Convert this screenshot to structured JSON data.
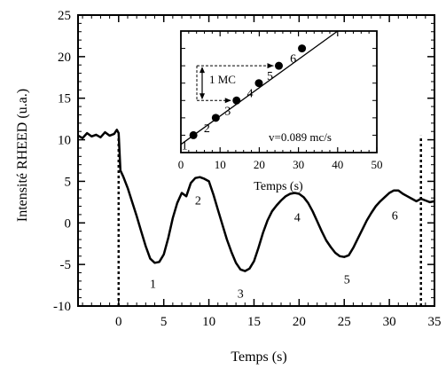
{
  "chart_data": [
    {
      "type": "line",
      "xlabel": "Temps (s)",
      "ylabel": "Intensité RHEED (u.a.)",
      "xlim": [
        -4.5,
        35
      ],
      "ylim": [
        -10,
        25
      ],
      "xticks": [
        0,
        5,
        10,
        15,
        20,
        25,
        30,
        35
      ],
      "yticks": [
        -10,
        -5,
        0,
        5,
        10,
        15,
        20,
        25
      ],
      "grid": false,
      "series": [
        {
          "x": [
            -4.5,
            -4,
            -3.5,
            -3,
            -2.5,
            -2,
            -1.5,
            -1,
            -0.5,
            -0.2,
            0,
            0.2,
            0.5,
            1,
            1.5,
            2,
            2.5,
            3,
            3.5,
            4,
            4.5,
            5,
            5.5,
            6,
            6.5,
            7,
            7.5,
            8,
            8.5,
            9,
            9.5,
            10,
            10.5,
            11,
            11.5,
            12,
            12.5,
            13,
            13.5,
            14,
            14.5,
            15,
            15.5,
            16,
            16.5,
            17,
            17.5,
            18,
            18.5,
            19,
            19.5,
            20,
            20.5,
            21,
            21.5,
            22,
            22.5,
            23,
            23.5,
            24,
            24.5,
            25,
            25.5,
            26,
            26.5,
            27,
            27.5,
            28,
            28.5,
            29,
            29.5,
            30,
            30.5,
            31,
            31.5,
            32,
            32.5,
            33,
            33.5,
            34,
            34.5,
            35
          ],
          "y": [
            10.5,
            10.2,
            10.8,
            10.4,
            10.6,
            10.3,
            10.9,
            10.5,
            10.7,
            11.2,
            10.8,
            6.3,
            5.6,
            4.2,
            2.5,
            0.8,
            -1,
            -2.8,
            -4.3,
            -4.8,
            -4.7,
            -3.8,
            -1.8,
            0.6,
            2.4,
            3.6,
            3.2,
            4.8,
            5.4,
            5.5,
            5.3,
            5,
            3.4,
            1.6,
            -0.2,
            -2,
            -3.5,
            -4.8,
            -5.6,
            -5.8,
            -5.5,
            -4.6,
            -3,
            -1.2,
            0.3,
            1.4,
            2.1,
            2.7,
            3.2,
            3.5,
            3.6,
            3.5,
            3.1,
            2.4,
            1.4,
            0.2,
            -1,
            -2.1,
            -2.9,
            -3.6,
            -4,
            -4.1,
            -3.9,
            -3,
            -1.9,
            -0.8,
            0.3,
            1.2,
            2,
            2.6,
            3.1,
            3.6,
            3.9,
            3.9,
            3.5,
            3.2,
            2.9,
            2.6,
            2.9,
            2.7,
            2.5,
            2.6
          ]
        }
      ],
      "vlines": [
        0,
        33.5
      ],
      "point_labels": [
        {
          "text": "1",
          "x": 3.8,
          "y": -7.8
        },
        {
          "text": "2",
          "x": 8.8,
          "y": 2.2
        },
        {
          "text": "3",
          "x": 13.5,
          "y": -9
        },
        {
          "text": "4",
          "x": 19.8,
          "y": 0.2
        },
        {
          "text": "5",
          "x": 25.3,
          "y": -7.3
        },
        {
          "text": "6",
          "x": 30.6,
          "y": 0.4
        }
      ]
    },
    {
      "type": "scatter",
      "xlabel": "Temps (s)",
      "xlim": [
        0,
        50
      ],
      "ylim": [
        0,
        7
      ],
      "xticks": [
        0,
        10,
        20,
        30,
        40,
        50
      ],
      "annotation_mc": "1 MC",
      "annotation_v": "v=0.089 mc/s",
      "series": [
        {
          "x": [
            3.2,
            8.9,
            14.2,
            19.9,
            25.0,
            30.9
          ],
          "y": [
            1,
            2,
            3,
            4,
            5,
            6
          ],
          "labels": [
            "1",
            "2",
            "3",
            "4",
            "5",
            "6"
          ]
        }
      ],
      "fit_line": {
        "x": [
          0,
          40
        ],
        "y": [
          0.47,
          7
        ]
      }
    }
  ]
}
